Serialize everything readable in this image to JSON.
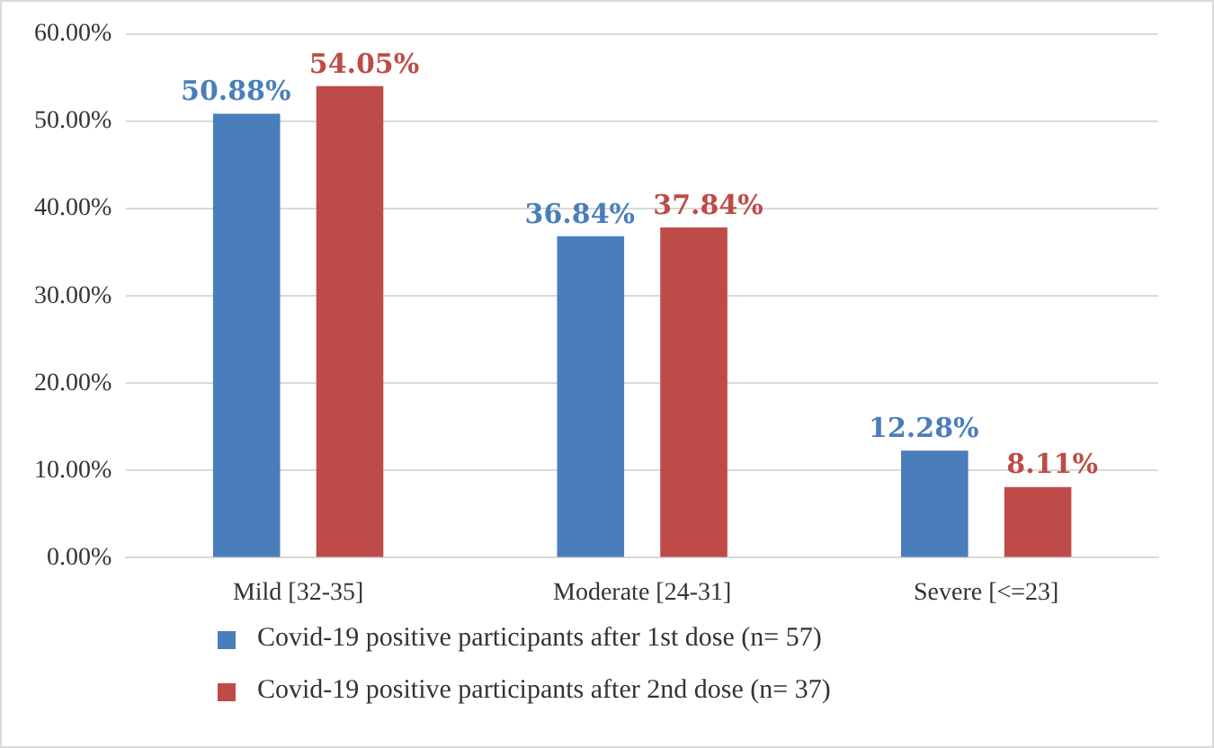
{
  "chart_data": {
    "type": "bar",
    "categories": [
      "Mild [32-35]",
      "Moderate [24-31]",
      "Severe [<=23]"
    ],
    "series": [
      {
        "name": "Covid-19 positive participants after 1st dose (n= 57)",
        "color": "#4a7ebb",
        "values": [
          50.88,
          36.84,
          12.28
        ],
        "value_labels": [
          "50.88%",
          "36.84%",
          "12.28%"
        ]
      },
      {
        "name": "Covid-19 positive participants after 2nd dose (n= 37)",
        "color": "#be4b48",
        "values": [
          54.05,
          37.84,
          8.11
        ],
        "value_labels": [
          "54.05%",
          "37.84%",
          "8.11%"
        ]
      }
    ],
    "ylim": [
      0,
      60
    ],
    "yticks": [
      {
        "value": 0,
        "label": "0.00%"
      },
      {
        "value": 10,
        "label": "10.00%"
      },
      {
        "value": 20,
        "label": "20.00%"
      },
      {
        "value": 30,
        "label": "30.00%"
      },
      {
        "value": 40,
        "label": "40.00%"
      },
      {
        "value": 50,
        "label": "50.00%"
      },
      {
        "value": 60,
        "label": "60.00%"
      }
    ],
    "grid": "y",
    "legend": "bottom"
  }
}
